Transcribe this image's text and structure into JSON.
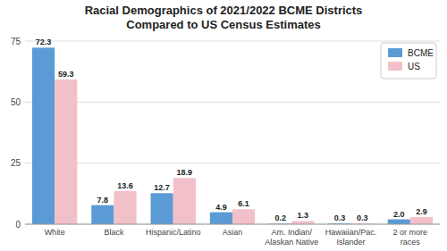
{
  "chart_data": {
    "type": "bar",
    "title": "Racial Demographics of 2021/2022 BCME Districts\nCompared to US Census Estimates",
    "categories": [
      "White",
      "Black",
      "Hispanic/Latino",
      "Asian",
      "Am. Indian/\nAlaskan Native",
      "Hawaiian/Pac.\nIslander",
      "2 or more\nraces"
    ],
    "series": [
      {
        "name": "BCME",
        "color": "#5B9BD5",
        "values": [
          72.3,
          7.8,
          12.7,
          4.9,
          0.2,
          0.3,
          2.0
        ],
        "value_labels": [
          "72.3",
          "7.8",
          "12.7",
          "4.9",
          "0.2",
          "0.3",
          "2.0"
        ]
      },
      {
        "name": "US",
        "color": "#F2C0C8",
        "values": [
          59.3,
          13.6,
          18.9,
          6.1,
          1.3,
          0.3,
          2.9
        ]
      }
    ],
    "ylim": [
      0,
      75
    ],
    "yticks": [
      0,
      25,
      50,
      75
    ],
    "grid": true,
    "legend": "upper right",
    "data_labels": true
  }
}
